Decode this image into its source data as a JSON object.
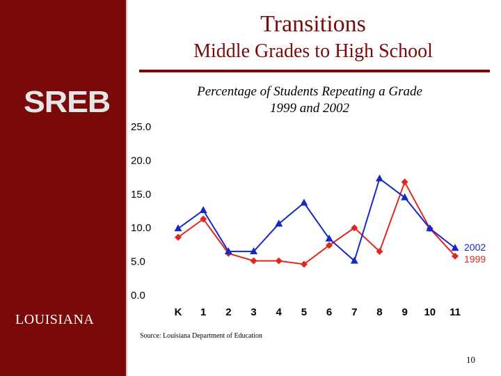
{
  "sidebar": {
    "logo_text": "SREB",
    "state": "LOUISIANA"
  },
  "header": {
    "title": "Transitions",
    "subtitle": "Middle Grades to High School"
  },
  "footer": {
    "source": "Source: Louisiana Department of Education",
    "page_number": "10"
  },
  "colors": {
    "brand": "#7a0a0a",
    "series_2002": "#1428c8",
    "series_1999": "#e0261e"
  },
  "chart_data": {
    "type": "line",
    "title": "Percentage of Students Repeating a Grade",
    "subtitle": "1999 and 2002",
    "categories": [
      "K",
      "1",
      "2",
      "3",
      "4",
      "5",
      "6",
      "7",
      "8",
      "9",
      "10",
      "11"
    ],
    "ylim": [
      0,
      25
    ],
    "yticks": [
      "25.0",
      "20.0",
      "15.0",
      "10.0",
      "5.0",
      "0.0"
    ],
    "grid": false,
    "legend": "inline labels at end of lines",
    "series": [
      {
        "name": "2002",
        "marker": "triangle",
        "color": "#1428c8",
        "values": [
          9.9,
          12.6,
          6.5,
          6.5,
          10.6,
          13.7,
          8.4,
          5.1,
          17.3,
          14.5,
          9.9,
          7.0
        ]
      },
      {
        "name": "1999",
        "marker": "diamond",
        "color": "#e0261e",
        "values": [
          8.6,
          11.3,
          6.2,
          5.1,
          5.1,
          4.6,
          7.4,
          10.0,
          6.5,
          16.8,
          9.9,
          5.8
        ]
      }
    ]
  }
}
